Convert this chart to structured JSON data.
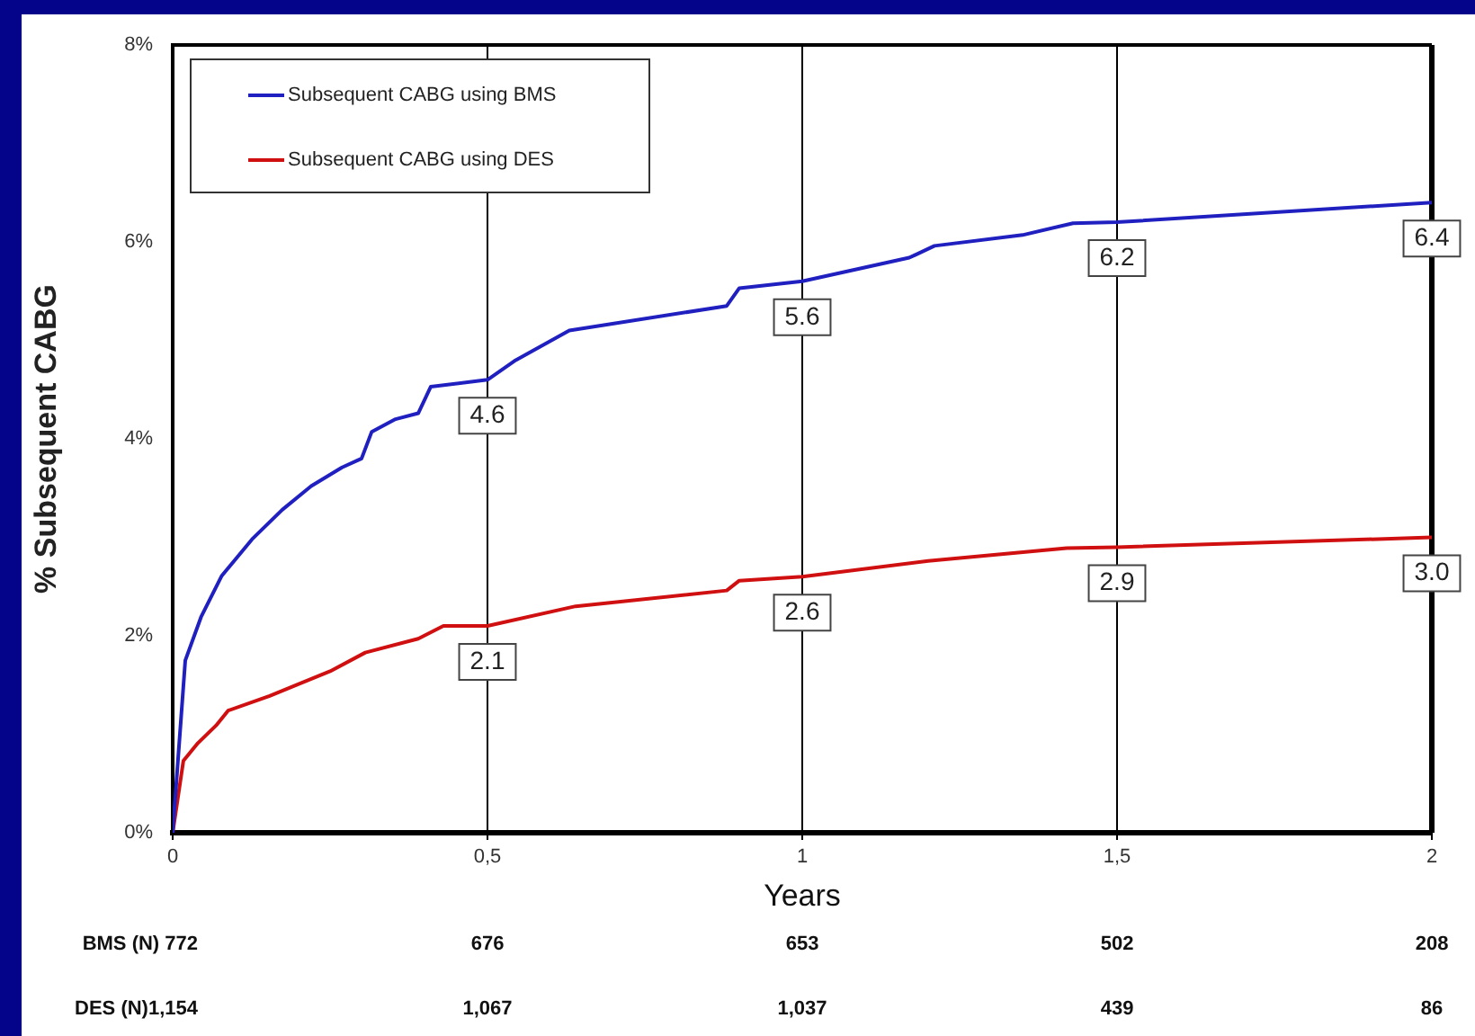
{
  "chart_data": {
    "type": "line",
    "ylabel": "% Subsequent CABG",
    "xlabel": "Years",
    "xlim": [
      0,
      2
    ],
    "xticks": [
      0,
      {
        "value": 0.5,
        "label": "0,5"
      },
      1,
      {
        "value": 1.5,
        "label": "1,5"
      },
      2
    ],
    "ylim": [
      0,
      8
    ],
    "yticks": [
      {
        "value": 0,
        "label": "0%"
      },
      {
        "value": 2,
        "label": "2%"
      },
      {
        "value": 4,
        "label": "4%"
      },
      {
        "value": 6,
        "label": "6%"
      },
      {
        "value": 8,
        "label": "8%"
      }
    ],
    "grid": "x",
    "legend": "top left",
    "marker": "none",
    "line_style": "solid",
    "series": [
      {
        "name": "Subsequent CABG using BMS",
        "color": "#2020c0",
        "x": [
          0,
          0.02,
          0.045,
          0.078,
          0.126,
          0.174,
          0.22,
          0.269,
          0.3,
          0.316,
          0.354,
          0.39,
          0.41,
          0.5,
          0.545,
          0.63,
          0.88,
          0.9,
          1.0,
          1.17,
          1.21,
          1.35,
          1.43,
          1.5,
          2.0
        ],
        "values": [
          0,
          1.75,
          2.19,
          2.61,
          2.98,
          3.28,
          3.52,
          3.71,
          3.8,
          4.07,
          4.2,
          4.26,
          4.53,
          4.6,
          4.8,
          5.1,
          5.35,
          5.53,
          5.6,
          5.84,
          5.96,
          6.07,
          6.19,
          6.2,
          6.4
        ],
        "value_labels": [
          null,
          null,
          null,
          null,
          null,
          null,
          null,
          null,
          null,
          null,
          null,
          null,
          null,
          "4.6",
          null,
          null,
          null,
          null,
          "5.6",
          null,
          null,
          null,
          null,
          "6.2",
          "6.4"
        ]
      },
      {
        "name": "Subsequent CABG using DES",
        "color": "#d01010",
        "x": [
          0,
          0.017,
          0.04,
          0.069,
          0.088,
          0.154,
          0.25,
          0.306,
          0.39,
          0.43,
          0.5,
          0.64,
          0.88,
          0.9,
          1.0,
          1.2,
          1.42,
          1.5,
          2.0
        ],
        "values": [
          0,
          0.73,
          0.91,
          1.09,
          1.24,
          1.39,
          1.64,
          1.83,
          1.97,
          2.1,
          2.1,
          2.3,
          2.46,
          2.56,
          2.6,
          2.76,
          2.89,
          2.9,
          3.0
        ],
        "value_labels": [
          null,
          null,
          null,
          null,
          null,
          null,
          null,
          null,
          null,
          null,
          "2.1",
          null,
          null,
          null,
          "2.6",
          null,
          null,
          "2.9",
          "3.0"
        ]
      }
    ],
    "annotations": [
      "BMS (N) 772",
      "676",
      "653",
      "502",
      "208",
      "DES (N)1,154",
      "1,067",
      "1,037",
      "439",
      "86"
    ]
  }
}
